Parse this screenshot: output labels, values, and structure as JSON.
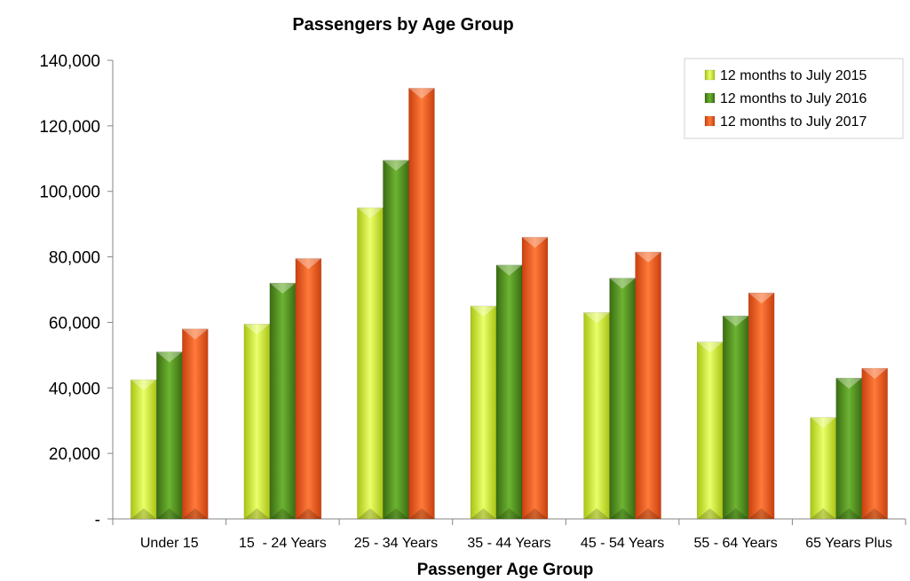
{
  "chart_data": {
    "type": "bar",
    "title": "Passengers by Age Group",
    "xlabel": "Passenger Age Group",
    "ylabel": "",
    "ylim": [
      0,
      140000
    ],
    "yticks": [
      0,
      20000,
      40000,
      60000,
      80000,
      100000,
      120000,
      140000
    ],
    "ytick_labels": [
      "-",
      "20,000",
      "40,000",
      "60,000",
      "80,000",
      "100,000",
      "120,000",
      "140,000"
    ],
    "categories": [
      "Under 15",
      "15  - 24 Years",
      "25 - 34 Years",
      "35 - 44 Years",
      "45 - 54 Years",
      "55 - 64 Years",
      "65 Years Plus"
    ],
    "series": [
      {
        "name": "12 months to July 2015",
        "color": "#c8e61e",
        "values": [
          42500,
          59500,
          95000,
          65000,
          63000,
          54000,
          31000
        ]
      },
      {
        "name": "12 months to July 2016",
        "color": "#4f8a1e",
        "values": [
          51000,
          72000,
          109500,
          77500,
          73500,
          62000,
          43000
        ]
      },
      {
        "name": "12 months to July 2017",
        "color": "#f05a1e",
        "values": [
          58000,
          79500,
          131500,
          86000,
          81500,
          69000,
          46000
        ]
      }
    ],
    "legend_position": "top-right",
    "grid": false
  }
}
